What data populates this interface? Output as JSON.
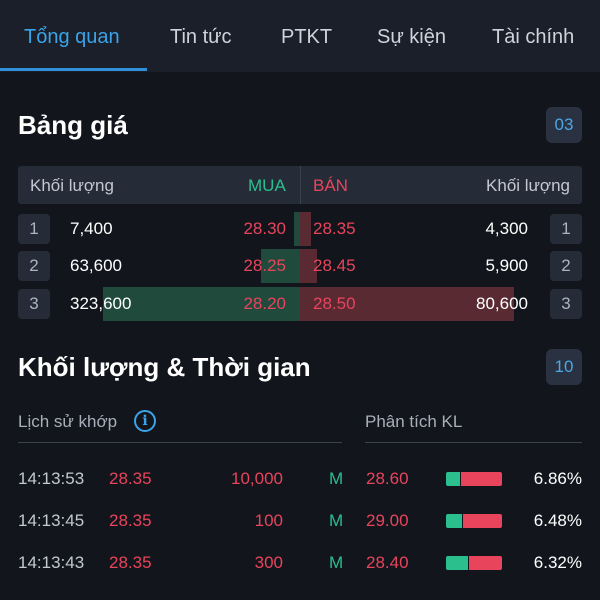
{
  "tabs": [
    "Tổng quan",
    "Tin tức",
    "PTKT",
    "Sự kiện",
    "Tài chính"
  ],
  "order_book": {
    "title": "Bảng giá",
    "badge": "03",
    "header": {
      "buy_volume": "Khối lượng",
      "buy": "MUA",
      "sell": "BÁN",
      "sell_volume": "Khối lượng"
    },
    "rows": [
      {
        "level": "1",
        "bid_volume": "7,400",
        "bid_price": "28.30",
        "ask_price": "28.35",
        "ask_volume": "4,300",
        "bid_fill": 0.02,
        "ask_fill": 0.04
      },
      {
        "level": "2",
        "bid_volume": "63,600",
        "bid_price": "28.25",
        "ask_price": "28.45",
        "ask_volume": "5,900",
        "bid_fill": 0.14,
        "ask_fill": 0.06
      },
      {
        "level": "3",
        "bid_volume": "323,600",
        "bid_price": "28.20",
        "ask_price": "28.50",
        "ask_volume": "80,600",
        "bid_fill": 0.7,
        "ask_fill": 0.76
      }
    ]
  },
  "matching": {
    "title": "Khối lượng & Thời gian",
    "badge": "10",
    "history_label": "Lịch sử khớp",
    "analysis_label": "Phân tích KL",
    "info_icon": "info-icon",
    "rows": [
      {
        "time": "14:13:53",
        "price": "28.35",
        "volume": "10,000",
        "side": "M",
        "a_price": "28.60",
        "green": 0.25,
        "pct": "6.86%"
      },
      {
        "time": "14:13:45",
        "price": "28.35",
        "volume": "100",
        "side": "M",
        "a_price": "29.00",
        "green": 0.28,
        "pct": "6.48%"
      },
      {
        "time": "14:13:43",
        "price": "28.35",
        "volume": "300",
        "side": "M",
        "a_price": "28.40",
        "green": 0.4,
        "pct": "6.32%"
      }
    ]
  },
  "colors": {
    "accent": "#3ba3e8",
    "buy": "#2bbf8e",
    "sell": "#e8445c"
  }
}
